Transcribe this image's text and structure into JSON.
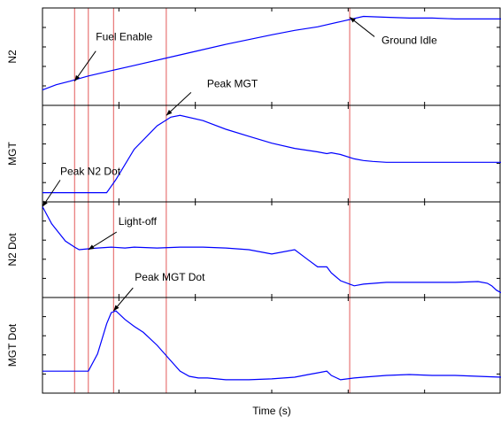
{
  "chart_data": {
    "type": "line",
    "xlabel": "Time (s)",
    "x_domain": [
      0,
      100
    ],
    "panels": [
      {
        "ylabel": "N2",
        "ylim": [
          0,
          100
        ],
        "series": {
          "x": [
            0,
            3,
            6,
            10,
            15,
            20,
            30,
            40,
            50,
            55,
            60,
            65,
            70,
            75,
            80,
            85,
            90,
            100
          ],
          "y": [
            12,
            18,
            22,
            28,
            34,
            40,
            52,
            64,
            75,
            80,
            84,
            90,
            96,
            95,
            94,
            94,
            93,
            93
          ]
        }
      },
      {
        "ylabel": "MGT",
        "ylim": [
          0,
          100
        ],
        "series": {
          "x": [
            0,
            9,
            13,
            14,
            16,
            20,
            25,
            28,
            30,
            35,
            40,
            45,
            50,
            55,
            60,
            62,
            63,
            65,
            68,
            70,
            72,
            75,
            80,
            85,
            90,
            100
          ],
          "y": [
            5,
            5,
            5,
            5,
            20,
            55,
            82,
            92,
            94,
            88,
            78,
            70,
            62,
            56,
            52,
            50,
            51,
            49,
            44,
            42,
            41,
            40,
            40,
            40,
            40,
            40
          ]
        }
      },
      {
        "ylabel": "N2 Dot",
        "ylim": [
          0,
          100
        ],
        "series": {
          "x": [
            0,
            2,
            5,
            7,
            8,
            10,
            12,
            15,
            18,
            20,
            25,
            30,
            35,
            40,
            45,
            50,
            55,
            58,
            60,
            62,
            63,
            65,
            67,
            68,
            70,
            75,
            80,
            85,
            90,
            95,
            97,
            98,
            99,
            100
          ],
          "y": [
            100,
            80,
            60,
            53,
            50,
            51,
            52,
            53,
            52,
            53,
            52,
            53,
            53,
            52,
            50,
            45,
            50,
            38,
            30,
            30,
            23,
            14,
            10,
            8,
            10,
            12,
            12,
            12,
            12,
            13,
            11,
            8,
            3,
            0
          ]
        }
      },
      {
        "ylabel": "MGT Dot",
        "ylim": [
          0,
          100
        ],
        "series": {
          "x": [
            0,
            8,
            9,
            10,
            12,
            14,
            15,
            16,
            18,
            20,
            22,
            25,
            28,
            30,
            32,
            34,
            36,
            40,
            45,
            50,
            55,
            58,
            60,
            62,
            63,
            65,
            68,
            70,
            75,
            80,
            85,
            90,
            95,
            100
          ],
          "y": [
            20,
            20,
            20,
            20,
            40,
            75,
            88,
            90,
            80,
            72,
            65,
            50,
            32,
            20,
            14,
            12,
            12,
            10,
            10,
            11,
            13,
            16,
            18,
            20,
            15,
            10,
            12,
            13,
            15,
            16,
            15,
            15,
            14,
            13
          ]
        }
      }
    ],
    "event_markers_x": [
      7,
      10,
      15.5,
      27,
      67
    ],
    "annotations": [
      {
        "text": "Fuel Enable",
        "panel": 0,
        "x": 7,
        "y": 22
      },
      {
        "text": "Ground Idle",
        "panel": 0,
        "x": 67,
        "y": 95
      },
      {
        "text": "Peak MGT",
        "panel": 1,
        "x": 27,
        "y": 94
      },
      {
        "text": "Peak N2 Dot",
        "panel": 2,
        "x": 0,
        "y": 100
      },
      {
        "text": "Light-off",
        "panel": 2,
        "x": 10,
        "y": 50
      },
      {
        "text": "Peak MGT Dot",
        "panel": 3,
        "x": 15.5,
        "y": 90
      }
    ],
    "colors": {
      "series": "#0000ff",
      "markers": "#e35a5a",
      "axes": "#000000"
    }
  }
}
